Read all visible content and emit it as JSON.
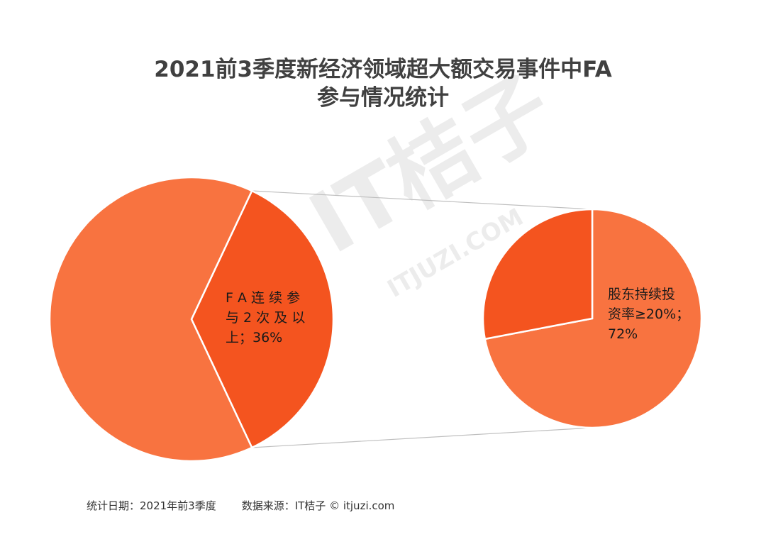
{
  "title": {
    "line1": "2021前3季度新经济领域超大额交易事件中FA",
    "line2": "参与情况统计"
  },
  "chart_data": {
    "type": "pie",
    "subtype": "pie-of-pie",
    "colors": {
      "main": "#f87340",
      "highlight": "#f4541f",
      "connector": "#bfbfbf",
      "border": "#ffffff"
    },
    "pies": [
      {
        "slices": [
          {
            "label": "FA连续参与2次及以上；36%",
            "value": 36,
            "highlight": true
          },
          {
            "label": "",
            "value": 64,
            "highlight": false
          }
        ]
      },
      {
        "slices": [
          {
            "label": "股东持续投资率≥20%；72%",
            "value": 72,
            "highlight": false
          },
          {
            "label": "",
            "value": 28,
            "highlight": true
          }
        ]
      }
    ],
    "labels": {
      "left": [
        "F A 连 续 参",
        "与 2 次 及 以",
        "上；36%"
      ],
      "right": [
        "股东持续投",
        "资率≥20%；",
        "72%"
      ]
    }
  },
  "footer": {
    "date": "统计日期：2021年前3季度",
    "source": "数据来源：IT桔子 © itjuzi.com"
  },
  "watermark": {
    "brand": "IT桔子",
    "url": "ITJUZI.COM"
  }
}
